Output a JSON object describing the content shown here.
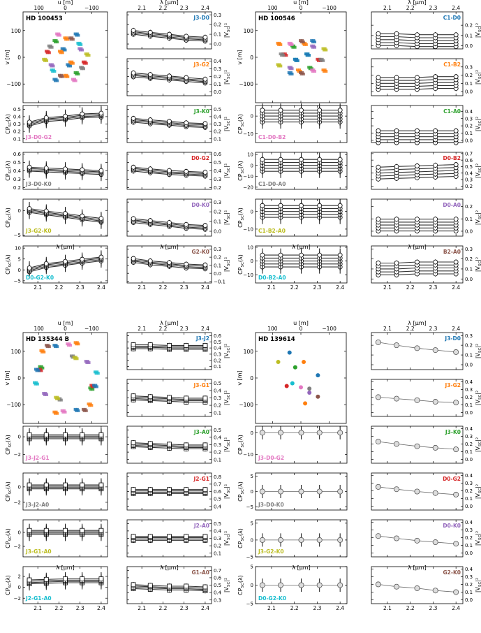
{
  "colors": {
    "J3": "#1f77b4",
    "D0": "#1f77b4",
    "J2": "#1f77b4",
    "C1": "#1f77b4",
    "G2": "#ff7f0e",
    "G1": "#ff7f0e",
    "K0": "#2ca02c",
    "A0": "#2ca02c",
    "B2": "#d62728",
    "lbl_blue": "#1f77b4",
    "lbl_orange": "#ff7f0e",
    "lbl_green": "#2ca02c",
    "lbl_red": "#d62728",
    "lbl_purple": "#9467bd",
    "lbl_brown": "#8c564b",
    "lbl_pink": "#e377c2",
    "lbl_gray": "#7f7f7f",
    "lbl_olive": "#bcbd22",
    "lbl_cyan": "#17becf"
  },
  "axis_text": {
    "u_label": "u [m]",
    "v_label": "v [m]",
    "lambda_label": "λ [μm]",
    "cp_label": "CP",
    "cp_sub": "SC",
    "cp_arg": "(λ)",
    "v2_label": "|V",
    "v2_sub": "SC",
    "v2_end": "|²"
  },
  "targets": [
    {
      "name": "HD 100453"
    },
    {
      "name": "HD 100546"
    },
    {
      "name": "HD 135344 B"
    },
    {
      "name": "HD 139614"
    }
  ],
  "chart_data": [
    {
      "type": "scatter",
      "title": "HD 100453",
      "xlabel": "u [m]",
      "ylabel": "v [m]",
      "xticks": [
        "100",
        "0",
        "−100"
      ],
      "yticks": [
        "100",
        "0",
        "−100"
      ],
      "xlim": [
        160,
        -160
      ],
      "ylim": [
        -170,
        170
      ],
      "blocks": [
        {
          "panel": "v2",
          "label": "J3-D0",
          "values": [
            0.12,
            0.1,
            0.08,
            0.06,
            0.05
          ],
          "ylim": [
            -0.05,
            0.33
          ],
          "yticks": [
            "0.0",
            "0.1",
            "0.2",
            "0.3"
          ]
        },
        {
          "panel": "v2",
          "label": "J3-G2",
          "values": [
            0.22,
            0.2,
            0.18,
            0.16,
            0.14
          ],
          "ylim": [
            -0.05,
            0.43
          ],
          "yticks": [
            "0.0",
            "0.1",
            "0.2",
            "0.3",
            "0.4"
          ]
        },
        {
          "panel": "cp",
          "label": "J3-D0-G2",
          "values": [
            0.3,
            0.36,
            0.38,
            0.41,
            0.42
          ],
          "ylim": [
            0.05,
            0.55
          ],
          "yticks": [
            "0.1",
            "0.2",
            "0.3",
            "0.4",
            "0.5"
          ]
        },
        {
          "panel": "v2",
          "label": "J3-K0",
          "values": [
            0.35,
            0.33,
            0.31,
            0.29,
            0.28
          ],
          "ylim": [
            0.05,
            0.55
          ],
          "yticks": [
            "0.1",
            "0.2",
            "0.3",
            "0.4",
            "0.5"
          ]
        },
        {
          "panel": "cp",
          "label": "J3-D0-K0",
          "values": [
            0.42,
            0.41,
            0.4,
            0.39,
            0.38
          ],
          "ylim": [
            0.18,
            0.62
          ],
          "yticks": [
            "0.2",
            "0.3",
            "0.4",
            "0.5",
            "0.6"
          ]
        },
        {
          "panel": "v2",
          "label": "D0-G2",
          "values": [
            0.42,
            0.4,
            0.38,
            0.37,
            0.36
          ],
          "ylim": [
            0.18,
            0.62
          ],
          "yticks": [
            "0.2",
            "0.3",
            "0.4",
            "0.5",
            "0.6"
          ]
        },
        {
          "panel": "cp",
          "label": "J3-G2-K0",
          "values": [
            0,
            -0.5,
            -1,
            -1.5,
            -2
          ],
          "ylim": [
            -5.2,
            2.3
          ],
          "yticks": [
            "−5",
            "0"
          ]
        },
        {
          "panel": "v2",
          "label": "D0-K0",
          "values": [
            0.11,
            0.09,
            0.07,
            0.05,
            0.04
          ],
          "ylim": [
            -0.05,
            0.33
          ],
          "yticks": [
            "0.0",
            "0.1",
            "0.2",
            "0.3"
          ]
        },
        {
          "panel": "cp",
          "label": "D0-G2-K0",
          "values": [
            0,
            2,
            3,
            4,
            5
          ],
          "ylim": [
            -6,
            11
          ],
          "yticks": [
            "−5",
            "0",
            "5",
            "10"
          ]
        },
        {
          "panel": "v2",
          "label": "G2-K0",
          "values": [
            0.16,
            0.13,
            0.11,
            0.09,
            0.08
          ],
          "ylim": [
            -0.12,
            0.34
          ],
          "yticks": [
            "−0.1",
            "0.0",
            "0.1",
            "0.2",
            "0.3"
          ]
        }
      ]
    },
    {
      "type": "scatter",
      "title": "HD 100546",
      "xlabel": "u [m]",
      "ylabel": "v [m]",
      "xticks": [
        "100",
        "0",
        "−100"
      ],
      "yticks": [
        "100",
        "0",
        "−100"
      ],
      "xlim": [
        160,
        -160
      ],
      "ylim": [
        -170,
        170
      ],
      "blocks": [
        {
          "panel": "v2",
          "label": "C1-D0",
          "values": [
            0.06,
            0.06,
            0.05,
            0.05,
            0.05
          ],
          "ylim": [
            -0.03,
            0.33
          ],
          "yticks": [
            "0.0",
            "0.1",
            "0.2"
          ]
        },
        {
          "panel": "v2",
          "label": "C1-B2",
          "values": [
            0.1,
            0.1,
            0.1,
            0.11,
            0.11
          ],
          "ylim": [
            -0.05,
            0.4
          ],
          "yticks": [
            "0.0",
            "0.1",
            "0.2",
            "0.3"
          ]
        },
        {
          "panel": "cp",
          "label": "C1-D0-B2",
          "values": [
            0,
            0,
            0,
            0,
            0
          ],
          "ylim": [
            -15,
            6
          ],
          "yticks": [
            "−10",
            "0"
          ]
        },
        {
          "panel": "v2",
          "label": "C1-A0",
          "values": [
            0.05,
            0.05,
            0.05,
            0.05,
            0.05
          ],
          "ylim": [
            -0.03,
            0.48
          ],
          "yticks": [
            "0.0",
            "0.1",
            "0.2",
            "0.3",
            "0.4"
          ]
        },
        {
          "panel": "cp",
          "label": "C1-D0-A0",
          "values": [
            0,
            0,
            0,
            0,
            0
          ],
          "ylim": [
            -22,
            12
          ],
          "yticks": [
            "−20",
            "−10",
            "0",
            "10"
          ]
        },
        {
          "panel": "v2",
          "label": "D0-B2",
          "values": [
            0.4,
            0.41,
            0.42,
            0.43,
            0.44
          ],
          "ylim": [
            0.15,
            0.72
          ],
          "yticks": [
            "0.2",
            "0.3",
            "0.4",
            "0.5",
            "0.6",
            "0.7"
          ]
        },
        {
          "panel": "cp",
          "label": "C1-B2-A0",
          "values": [
            0,
            0,
            0,
            0,
            0
          ],
          "ylim": [
            -14,
            7
          ],
          "yticks": [
            "−10",
            "0"
          ]
        },
        {
          "panel": "v2",
          "label": "D0-A0",
          "values": [
            0.05,
            0.05,
            0.05,
            0.05,
            0.05
          ],
          "ylim": [
            -0.04,
            0.26
          ],
          "yticks": [
            "0.0",
            "0.1",
            "0.2"
          ]
        },
        {
          "panel": "cp",
          "label": "D0-B2-A0",
          "values": [
            0,
            0,
            0,
            0,
            0
          ],
          "ylim": [
            -16,
            11
          ],
          "yticks": [
            "−10",
            "0",
            "10"
          ]
        },
        {
          "panel": "v2",
          "label": "B2-A0",
          "values": [
            0.1,
            0.1,
            0.11,
            0.11,
            0.11
          ],
          "ylim": [
            -0.04,
            0.33
          ],
          "yticks": [
            "0.0",
            "0.1",
            "0.2",
            "0.3"
          ]
        }
      ]
    },
    {
      "type": "scatter",
      "title": "HD 135344 B",
      "xlabel": "u [m]",
      "ylabel": "v [m]",
      "xticks": [
        "100",
        "0",
        "−100"
      ],
      "yticks": [
        "100",
        "0",
        "−100"
      ],
      "xlim": [
        160,
        -160
      ],
      "ylim": [
        -170,
        170
      ],
      "blocks": [
        {
          "panel": "v2",
          "label": "J3-J2",
          "values": [
            0.42,
            0.42,
            0.41,
            0.41,
            0.41
          ],
          "ylim": [
            0.05,
            0.65
          ],
          "yticks": [
            "0.1",
            "0.2",
            "0.3",
            "0.4",
            "0.5",
            "0.6"
          ]
        },
        {
          "panel": "v2",
          "label": "J3-G1",
          "values": [
            0.3,
            0.29,
            0.28,
            0.27,
            0.27
          ],
          "ylim": [
            0.05,
            0.55
          ],
          "yticks": [
            "0.1",
            "0.2",
            "0.3",
            "0.4",
            "0.5"
          ]
        },
        {
          "panel": "cp",
          "label": "J3-J2-G1",
          "values": [
            0,
            0,
            0,
            0,
            0
          ],
          "ylim": [
            -3,
            1.2
          ],
          "yticks": [
            "−2",
            "0"
          ]
        },
        {
          "panel": "v2",
          "label": "J3-A0",
          "values": [
            0.3,
            0.29,
            0.28,
            0.27,
            0.27
          ],
          "ylim": [
            0.05,
            0.55
          ],
          "yticks": [
            "0.1",
            "0.2",
            "0.3",
            "0.4",
            "0.5"
          ]
        },
        {
          "panel": "cp",
          "label": "J3-J2-A0",
          "values": [
            0,
            0,
            0,
            0,
            0
          ],
          "ylim": [
            -3,
            1.8
          ],
          "yticks": [
            "−2",
            "0"
          ]
        },
        {
          "panel": "v2",
          "label": "J2-G1",
          "values": [
            0.6,
            0.6,
            0.6,
            0.6,
            0.6
          ],
          "ylim": [
            0.35,
            0.85
          ],
          "yticks": [
            "0.4",
            "0.5",
            "0.6",
            "0.7",
            "0.8"
          ]
        },
        {
          "panel": "cp",
          "label": "J3-G1-A0",
          "values": [
            0,
            0,
            0,
            0,
            0
          ],
          "ylim": [
            -3.5,
            1.8
          ],
          "yticks": [
            "−2",
            "0"
          ]
        },
        {
          "panel": "v2",
          "label": "J2-A0",
          "values": [
            0.3,
            0.3,
            0.3,
            0.3,
            0.3
          ],
          "ylim": [
            0.05,
            0.55
          ],
          "yticks": [
            "0.1",
            "0.2",
            "0.3",
            "0.4",
            "0.5"
          ]
        },
        {
          "panel": "cp",
          "label": "J2-G1-A0",
          "values": [
            1,
            1.1,
            1.2,
            1.2,
            1.2
          ],
          "ylim": [
            -3,
            3.8
          ],
          "yticks": [
            "−2",
            "0",
            "2"
          ]
        },
        {
          "panel": "v2",
          "label": "G1-A0",
          "values": [
            0.48,
            0.47,
            0.46,
            0.46,
            0.45
          ],
          "ylim": [
            0.25,
            0.75
          ],
          "yticks": [
            "0.3",
            "0.4",
            "0.5",
            "0.6",
            "0.7"
          ]
        }
      ]
    },
    {
      "type": "scatter",
      "title": "HD 139614",
      "xlabel": "u [m]",
      "ylabel": "v [m]",
      "xticks": [
        "100",
        "0",
        "−100"
      ],
      "yticks": [
        "100",
        "0",
        "−100"
      ],
      "xlim": [
        160,
        -160
      ],
      "ylim": [
        -170,
        170
      ],
      "blocks": [
        {
          "panel": "v2",
          "label": "J3-D0",
          "values": [
            0.23,
            0.2,
            0.17,
            0.15,
            0.13
          ],
          "ylim": [
            -0.05,
            0.33
          ],
          "yticks": [
            "0.0",
            "0.1",
            "0.2",
            "0.3"
          ]
        },
        {
          "panel": "v2",
          "label": "J3-G2",
          "values": [
            0.2,
            0.18,
            0.16,
            0.14,
            0.13
          ],
          "ylim": [
            -0.05,
            0.43
          ],
          "yticks": [
            "0.0",
            "0.1",
            "0.2",
            "0.3",
            "0.4"
          ]
        },
        {
          "panel": "cp",
          "label": "J3-D0-G2",
          "values": [
            0,
            0,
            0,
            0,
            0
          ],
          "ylim": [
            -14,
            3
          ],
          "yticks": [
            "−10",
            "0"
          ]
        },
        {
          "panel": "v2",
          "label": "J3-K0",
          "values": [
            0.23,
            0.2,
            0.17,
            0.15,
            0.13
          ],
          "ylim": [
            -0.05,
            0.43
          ],
          "yticks": [
            "0.0",
            "0.1",
            "0.2",
            "0.3",
            "0.4"
          ]
        },
        {
          "panel": "cp",
          "label": "J3-D0-K0",
          "values": [
            0,
            0,
            0,
            0,
            0
          ],
          "ylim": [
            -6,
            6
          ],
          "yticks": [
            "−5",
            "0",
            "5"
          ]
        },
        {
          "panel": "v2",
          "label": "D0-G2",
          "values": [
            0.25,
            0.22,
            0.19,
            0.17,
            0.15
          ],
          "ylim": [
            -0.05,
            0.43
          ],
          "yticks": [
            "0.0",
            "0.1",
            "0.2",
            "0.3",
            "0.4"
          ]
        },
        {
          "panel": "cp",
          "label": "J3-G2-K0",
          "values": [
            0,
            0,
            0,
            0,
            0
          ],
          "ylim": [
            -5,
            6
          ],
          "yticks": [
            "−5",
            "0",
            "5"
          ]
        },
        {
          "panel": "v2",
          "label": "D0-K0",
          "values": [
            0.22,
            0.19,
            0.16,
            0.14,
            0.12
          ],
          "ylim": [
            -0.05,
            0.43
          ],
          "yticks": [
            "0.0",
            "0.1",
            "0.2",
            "0.3",
            "0.4"
          ]
        },
        {
          "panel": "cp",
          "label": "D0-G2-K0",
          "values": [
            0,
            0,
            0,
            0,
            0
          ],
          "ylim": [
            -5,
            5
          ],
          "yticks": [
            "−5",
            "0",
            "5"
          ]
        },
        {
          "panel": "v2",
          "label": "G2-K0",
          "values": [
            0.2,
            0.17,
            0.15,
            0.12,
            0.1
          ],
          "ylim": [
            -0.05,
            0.43
          ],
          "yticks": [
            "0.0",
            "0.1",
            "0.2",
            "0.3",
            "0.4"
          ]
        }
      ]
    }
  ],
  "wavelengths": [
    2.06,
    2.14,
    2.23,
    2.31,
    2.4
  ],
  "x_axis": {
    "xlim": [
      2.03,
      2.43
    ],
    "ticks": [
      "2.1",
      "2.2",
      "2.3",
      "2.4"
    ],
    "tick_values": [
      2.1,
      2.2,
      2.3,
      2.4
    ]
  },
  "label_colors": {
    "J3-D0": "lbl_blue",
    "J3-G2": "lbl_orange",
    "J3-D0-G2": "lbl_pink",
    "J3-K0": "lbl_green",
    "J3-D0-K0": "lbl_gray",
    "D0-G2": "lbl_red",
    "J3-G2-K0": "lbl_olive",
    "D0-K0": "lbl_purple",
    "D0-G2-K0": "lbl_cyan",
    "G2-K0": "lbl_brown",
    "C1-D0": "lbl_blue",
    "C1-B2": "lbl_orange",
    "C1-D0-B2": "lbl_pink",
    "C1-A0": "lbl_green",
    "C1-D0-A0": "lbl_gray",
    "D0-B2": "lbl_red",
    "C1-B2-A0": "lbl_olive",
    "D0-A0": "lbl_purple",
    "D0-B2-A0": "lbl_cyan",
    "B2-A0": "lbl_brown",
    "J3-J2": "lbl_blue",
    "J3-G1": "lbl_orange",
    "J3-J2-G1": "lbl_pink",
    "J3-A0": "lbl_green",
    "J3-J2-A0": "lbl_gray",
    "J2-G1": "lbl_red",
    "J3-G1-A0": "lbl_olive",
    "J2-A0": "lbl_purple",
    "J2-G1-A0": "lbl_cyan",
    "G1-A0": "lbl_brown"
  }
}
